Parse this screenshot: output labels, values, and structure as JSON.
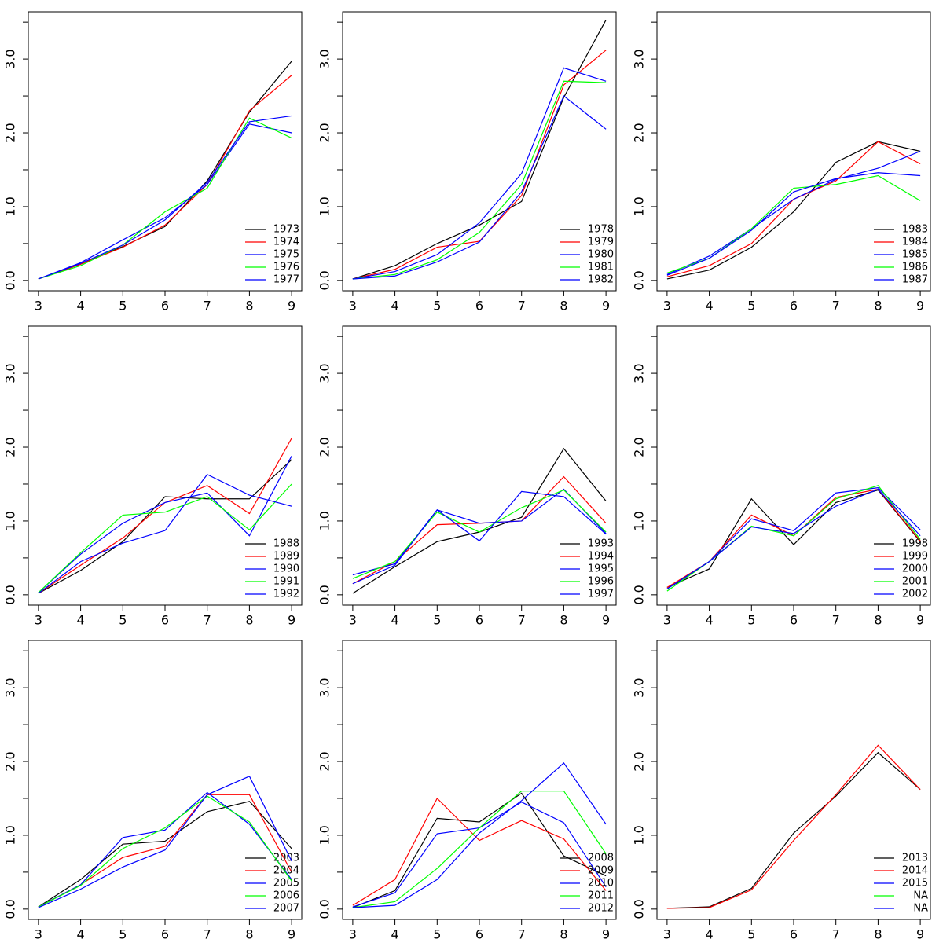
{
  "chart_data": [
    {
      "type": "line",
      "x": [
        3,
        4,
        5,
        6,
        7,
        8,
        9
      ],
      "xlim": [
        2.76,
        9.24
      ],
      "xticks": [
        3,
        4,
        5,
        6,
        7,
        8,
        9
      ],
      "ylim": [
        -0.14,
        3.64
      ],
      "yticks": [
        {
          "value": 0,
          "label": "0.0"
        },
        {
          "value": 1,
          "label": "1.0"
        },
        {
          "value": 2,
          "label": "2.0"
        },
        {
          "value": 3,
          "label": "3.0"
        }
      ],
      "yminorticks": [
        0.5,
        1.5,
        2.5,
        3.5
      ],
      "legend": "bottom-right",
      "series": [
        {
          "name": "1973",
          "color": "#000000",
          "values": [
            0.02,
            0.22,
            0.46,
            0.73,
            1.35,
            2.28,
            2.97
          ]
        },
        {
          "name": "1974",
          "color": "#ff0000",
          "values": [
            0.02,
            0.22,
            0.45,
            0.75,
            1.3,
            2.3,
            2.78
          ]
        },
        {
          "name": "1975",
          "color": "#0000ff",
          "values": [
            0.02,
            0.24,
            0.55,
            0.85,
            1.3,
            2.12,
            2.0
          ]
        },
        {
          "name": "1976",
          "color": "#00ff00",
          "values": [
            0.02,
            0.2,
            0.48,
            0.93,
            1.25,
            2.2,
            1.93
          ]
        },
        {
          "name": "1977",
          "color": "#0000ff",
          "values": [
            0.02,
            0.23,
            0.48,
            0.82,
            1.33,
            2.15,
            2.23
          ]
        }
      ]
    },
    {
      "type": "line",
      "x": [
        3,
        4,
        5,
        6,
        7,
        8,
        9
      ],
      "xlim": [
        2.76,
        9.24
      ],
      "xticks": [
        3,
        4,
        5,
        6,
        7,
        8,
        9
      ],
      "ylim": [
        -0.14,
        3.64
      ],
      "yticks": [
        {
          "value": 0,
          "label": "0.0"
        },
        {
          "value": 1,
          "label": "1.0"
        },
        {
          "value": 2,
          "label": "2.0"
        },
        {
          "value": 3,
          "label": "3.0"
        }
      ],
      "yminorticks": [
        0.5,
        1.5,
        2.5,
        3.5
      ],
      "legend": "bottom-right",
      "series": [
        {
          "name": "1978",
          "color": "#000000",
          "values": [
            0.02,
            0.2,
            0.5,
            0.75,
            1.07,
            2.48,
            3.53
          ]
        },
        {
          "name": "1979",
          "color": "#ff0000",
          "values": [
            0.02,
            0.15,
            0.45,
            0.53,
            1.15,
            2.65,
            3.12
          ]
        },
        {
          "name": "1980",
          "color": "#0000ff",
          "values": [
            0.02,
            0.12,
            0.35,
            0.78,
            1.45,
            2.88,
            2.7
          ]
        },
        {
          "name": "1981",
          "color": "#00ff00",
          "values": [
            0.02,
            0.08,
            0.28,
            0.65,
            1.3,
            2.7,
            2.68
          ]
        },
        {
          "name": "1982",
          "color": "#0000ff",
          "values": [
            0.02,
            0.06,
            0.25,
            0.52,
            1.2,
            2.5,
            2.05
          ]
        }
      ]
    },
    {
      "type": "line",
      "x": [
        3,
        4,
        5,
        6,
        7,
        8,
        9
      ],
      "xlim": [
        2.76,
        9.24
      ],
      "xticks": [
        3,
        4,
        5,
        6,
        7,
        8,
        9
      ],
      "ylim": [
        -0.14,
        3.64
      ],
      "yticks": [
        {
          "value": 0,
          "label": "0.0"
        },
        {
          "value": 1,
          "label": "1.0"
        },
        {
          "value": 2,
          "label": "2.0"
        },
        {
          "value": 3,
          "label": "3.0"
        }
      ],
      "yminorticks": [
        0.5,
        1.5,
        2.5,
        3.5
      ],
      "legend": "bottom-right",
      "series": [
        {
          "name": "1983",
          "color": "#000000",
          "values": [
            0.02,
            0.14,
            0.45,
            0.93,
            1.6,
            1.88,
            1.75
          ]
        },
        {
          "name": "1984",
          "color": "#ff0000",
          "values": [
            0.05,
            0.2,
            0.5,
            1.1,
            1.35,
            1.88,
            1.58
          ]
        },
        {
          "name": "1985",
          "color": "#0000ff",
          "values": [
            0.08,
            0.33,
            0.7,
            1.1,
            1.37,
            1.52,
            1.75
          ]
        },
        {
          "name": "1986",
          "color": "#00ff00",
          "values": [
            0.1,
            0.3,
            0.7,
            1.25,
            1.3,
            1.42,
            1.08
          ]
        },
        {
          "name": "1987",
          "color": "#0000ff",
          "values": [
            0.07,
            0.3,
            0.68,
            1.2,
            1.38,
            1.46,
            1.42
          ]
        }
      ]
    },
    {
      "type": "line",
      "x": [
        3,
        4,
        5,
        6,
        7,
        8,
        9
      ],
      "xlim": [
        2.76,
        9.24
      ],
      "xticks": [
        3,
        4,
        5,
        6,
        7,
        8,
        9
      ],
      "ylim": [
        -0.14,
        3.64
      ],
      "yticks": [
        {
          "value": 0,
          "label": "0.0"
        },
        {
          "value": 1,
          "label": "1.0"
        },
        {
          "value": 2,
          "label": "2.0"
        },
        {
          "value": 3,
          "label": "3.0"
        }
      ],
      "yminorticks": [
        0.5,
        1.5,
        2.5,
        3.5
      ],
      "legend": "bottom-right",
      "series": [
        {
          "name": "1988",
          "color": "#000000",
          "values": [
            0.02,
            0.33,
            0.72,
            1.33,
            1.3,
            1.3,
            1.83
          ]
        },
        {
          "name": "1989",
          "color": "#ff0000",
          "values": [
            0.02,
            0.4,
            0.77,
            1.25,
            1.48,
            1.1,
            2.12
          ]
        },
        {
          "name": "1990",
          "color": "#0000ff",
          "values": [
            0.03,
            0.55,
            0.97,
            1.25,
            1.38,
            0.8,
            1.88
          ]
        },
        {
          "name": "1991",
          "color": "#00ff00",
          "values": [
            0.03,
            0.57,
            1.08,
            1.12,
            1.33,
            0.88,
            1.5
          ]
        },
        {
          "name": "1992",
          "color": "#0000ff",
          "values": [
            0.02,
            0.45,
            0.7,
            0.87,
            1.63,
            1.35,
            1.2
          ]
        }
      ]
    },
    {
      "type": "line",
      "x": [
        3,
        4,
        5,
        6,
        7,
        8,
        9
      ],
      "xlim": [
        2.76,
        9.24
      ],
      "xticks": [
        3,
        4,
        5,
        6,
        7,
        8,
        9
      ],
      "ylim": [
        -0.14,
        3.64
      ],
      "yticks": [
        {
          "value": 0,
          "label": "0.0"
        },
        {
          "value": 1,
          "label": "1.0"
        },
        {
          "value": 2,
          "label": "2.0"
        },
        {
          "value": 3,
          "label": "3.0"
        }
      ],
      "yminorticks": [
        0.5,
        1.5,
        2.5,
        3.5
      ],
      "legend": "bottom-right",
      "series": [
        {
          "name": "1993",
          "color": "#000000",
          "values": [
            0.02,
            0.38,
            0.72,
            0.85,
            1.05,
            1.98,
            1.27
          ]
        },
        {
          "name": "1994",
          "color": "#ff0000",
          "values": [
            0.15,
            0.45,
            0.95,
            0.97,
            1.0,
            1.6,
            0.97
          ]
        },
        {
          "name": "1995",
          "color": "#0000ff",
          "values": [
            0.27,
            0.42,
            1.15,
            0.97,
            1.0,
            1.43,
            0.83
          ]
        },
        {
          "name": "1996",
          "color": "#00ff00",
          "values": [
            0.22,
            0.45,
            1.12,
            0.85,
            1.18,
            1.42,
            0.85
          ]
        },
        {
          "name": "1997",
          "color": "#0000ff",
          "values": [
            0.15,
            0.4,
            1.15,
            0.73,
            1.4,
            1.33,
            0.82
          ]
        }
      ]
    },
    {
      "type": "line",
      "x": [
        3,
        4,
        5,
        6,
        7,
        8,
        9
      ],
      "xlim": [
        2.76,
        9.24
      ],
      "xticks": [
        3,
        4,
        5,
        6,
        7,
        8,
        9
      ],
      "ylim": [
        -0.14,
        3.64
      ],
      "yticks": [
        {
          "value": 0,
          "label": "0.0"
        },
        {
          "value": 1,
          "label": "1.0"
        },
        {
          "value": 2,
          "label": "2.0"
        },
        {
          "value": 3,
          "label": "3.0"
        }
      ],
      "yminorticks": [
        0.5,
        1.5,
        2.5,
        3.5
      ],
      "legend": "bottom-right",
      "series": [
        {
          "name": "1998",
          "color": "#000000",
          "values": [
            0.1,
            0.35,
            1.3,
            0.68,
            1.25,
            1.42,
            0.72
          ]
        },
        {
          "name": "1999",
          "color": "#ff0000",
          "values": [
            0.1,
            0.45,
            1.08,
            0.8,
            1.32,
            1.43,
            0.73
          ]
        },
        {
          "name": "2000",
          "color": "#0000ff",
          "values": [
            0.08,
            0.45,
            1.03,
            0.87,
            1.38,
            1.45,
            0.88
          ]
        },
        {
          "name": "2001",
          "color": "#00ff00",
          "values": [
            0.05,
            0.45,
            0.93,
            0.8,
            1.3,
            1.48,
            0.75
          ]
        },
        {
          "name": "2002",
          "color": "#0000ff",
          "values": [
            0.08,
            0.45,
            0.92,
            0.83,
            1.2,
            1.43,
            0.8
          ]
        }
      ]
    },
    {
      "type": "line",
      "x": [
        3,
        4,
        5,
        6,
        7,
        8,
        9
      ],
      "xlim": [
        2.76,
        9.24
      ],
      "xticks": [
        3,
        4,
        5,
        6,
        7,
        8,
        9
      ],
      "ylim": [
        -0.14,
        3.64
      ],
      "yticks": [
        {
          "value": 0,
          "label": "0.0"
        },
        {
          "value": 1,
          "label": "1.0"
        },
        {
          "value": 2,
          "label": "2.0"
        },
        {
          "value": 3,
          "label": "3.0"
        }
      ],
      "yminorticks": [
        0.5,
        1.5,
        2.5,
        3.5
      ],
      "legend": "bottom-right",
      "series": [
        {
          "name": "2003",
          "color": "#000000",
          "values": [
            0.03,
            0.4,
            0.88,
            0.92,
            1.32,
            1.46,
            0.82
          ]
        },
        {
          "name": "2004",
          "color": "#ff0000",
          "values": [
            0.03,
            0.33,
            0.7,
            0.85,
            1.55,
            1.55,
            0.5
          ]
        },
        {
          "name": "2005",
          "color": "#0000ff",
          "values": [
            0.03,
            0.33,
            0.97,
            1.07,
            1.58,
            1.15,
            0.4
          ]
        },
        {
          "name": "2006",
          "color": "#00ff00",
          "values": [
            0.03,
            0.32,
            0.82,
            1.1,
            1.53,
            1.18,
            0.38
          ]
        },
        {
          "name": "2007",
          "color": "#0000ff",
          "values": [
            0.02,
            0.27,
            0.57,
            0.8,
            1.55,
            1.8,
            0.65
          ]
        }
      ]
    },
    {
      "type": "line",
      "x": [
        3,
        4,
        5,
        6,
        7,
        8,
        9
      ],
      "xlim": [
        2.76,
        9.24
      ],
      "xticks": [
        3,
        4,
        5,
        6,
        7,
        8,
        9
      ],
      "ylim": [
        -0.14,
        3.64
      ],
      "yticks": [
        {
          "value": 0,
          "label": "0.0"
        },
        {
          "value": 1,
          "label": "1.0"
        },
        {
          "value": 2,
          "label": "2.0"
        },
        {
          "value": 3,
          "label": "3.0"
        }
      ],
      "yminorticks": [
        0.5,
        1.5,
        2.5,
        3.5
      ],
      "legend": "bottom-right",
      "series": [
        {
          "name": "2008",
          "color": "#000000",
          "values": [
            0.02,
            0.25,
            1.23,
            1.18,
            1.57,
            0.72,
            0.45
          ]
        },
        {
          "name": "2009",
          "color": "#ff0000",
          "values": [
            0.05,
            0.4,
            1.5,
            0.93,
            1.2,
            0.95,
            0.25
          ]
        },
        {
          "name": "2010",
          "color": "#0000ff",
          "values": [
            0.03,
            0.22,
            1.02,
            1.1,
            1.45,
            1.17,
            0.3
          ]
        },
        {
          "name": "2011",
          "color": "#00ff00",
          "values": [
            0.02,
            0.1,
            0.55,
            1.1,
            1.6,
            1.6,
            0.75
          ]
        },
        {
          "name": "2012",
          "color": "#0000ff",
          "values": [
            0.02,
            0.05,
            0.4,
            1.03,
            1.47,
            1.98,
            1.15
          ]
        }
      ]
    },
    {
      "type": "line",
      "x": [
        3,
        4,
        5,
        6,
        7,
        8,
        9
      ],
      "xlim": [
        2.76,
        9.24
      ],
      "xticks": [
        3,
        4,
        5,
        6,
        7,
        8,
        9
      ],
      "ylim": [
        -0.14,
        3.64
      ],
      "yticks": [
        {
          "value": 0,
          "label": "0.0"
        },
        {
          "value": 1,
          "label": "1.0"
        },
        {
          "value": 2,
          "label": "2.0"
        },
        {
          "value": 3,
          "label": "3.0"
        }
      ],
      "yminorticks": [
        0.5,
        1.5,
        2.5,
        3.5
      ],
      "legend": "bottom-right",
      "series": [
        {
          "name": "2013",
          "color": "#000000",
          "values": [
            0.01,
            0.03,
            0.28,
            1.03,
            1.53,
            2.12,
            1.62
          ]
        },
        {
          "name": "2014",
          "color": "#ff0000",
          "values": [
            0.01,
            0.02,
            0.26,
            0.93,
            1.55,
            2.22,
            1.62
          ]
        },
        {
          "name": "2015",
          "color": "#0000ff",
          "values": [
            null,
            null,
            null,
            null,
            null,
            null,
            null
          ]
        },
        {
          "name": "NA",
          "color": "#00ff00",
          "values": [
            null,
            null,
            null,
            null,
            null,
            null,
            null
          ]
        },
        {
          "name": "NA",
          "color": "#0000ff",
          "values": [
            null,
            null,
            null,
            null,
            null,
            null,
            null
          ]
        }
      ]
    }
  ]
}
